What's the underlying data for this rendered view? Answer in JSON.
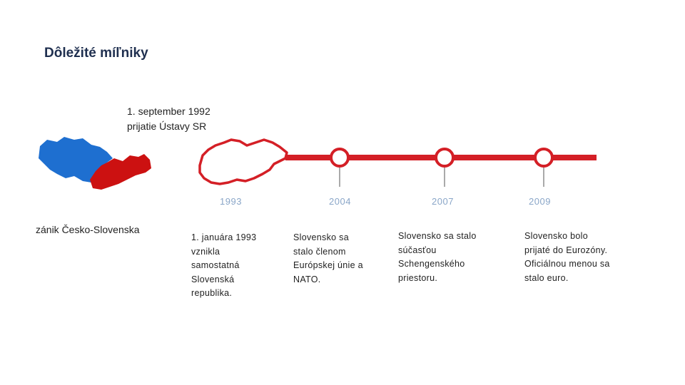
{
  "title": "Dôležité míľniky",
  "subtitle": {
    "line1": "1. september 1992",
    "line2": "prijatie Ústavy SR"
  },
  "left_caption": "zánik Česko-Slovenska",
  "colors": {
    "czech_blue": "#1e6fd0",
    "slovak_red": "#cc1111",
    "timeline_red": "#d41f26",
    "year_text": "#8aa6c8"
  },
  "milestones": [
    {
      "year": "1993",
      "text_lines": [
        "1. januára 1993",
        "vznikla",
        "samostatná",
        "Slovenská",
        "republika."
      ]
    },
    {
      "year": "2004",
      "text_lines": [
        "Slovensko sa",
        "stalo členom",
        "Európskej únie a",
        "NATO."
      ]
    },
    {
      "year": "2007",
      "text_lines": [
        "Slovensko sa stalo",
        "súčasťou",
        "Schengenského",
        "priestoru."
      ]
    },
    {
      "year": "2009",
      "text_lines": [
        "Slovensko bolo",
        "prijaté do Eurozóny.",
        "Oficiálnou menou sa",
        "stalo euro."
      ]
    }
  ]
}
